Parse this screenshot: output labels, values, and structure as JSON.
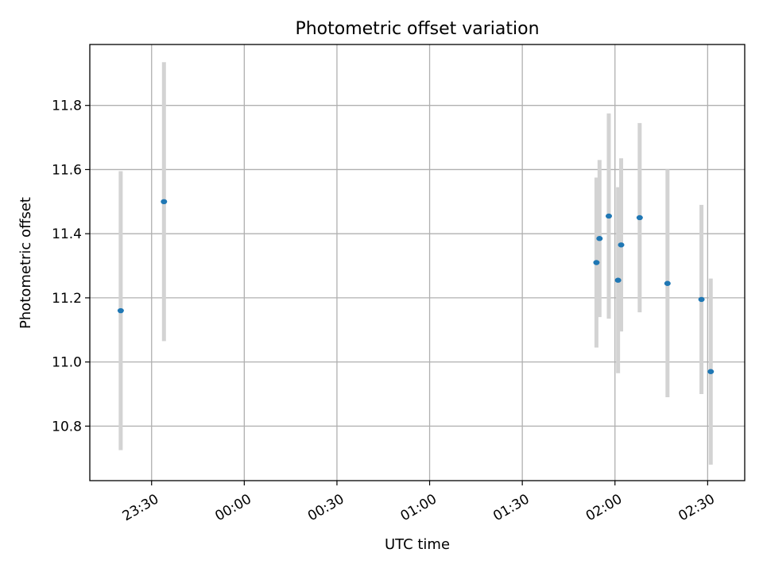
{
  "chart_data": {
    "type": "scatter",
    "title": "Photometric offset variation",
    "xlabel": "UTC time",
    "ylabel": "Photometric offset",
    "x_axis_kind": "time",
    "xlim": [
      "23:10",
      "02:42"
    ],
    "ylim": [
      10.63,
      11.99
    ],
    "x_ticks": [
      "23:30",
      "00:00",
      "00:30",
      "01:00",
      "01:30",
      "02:00",
      "02:30"
    ],
    "y_ticks": [
      "10.8",
      "11.0",
      "11.2",
      "11.4",
      "11.6",
      "11.8"
    ],
    "grid": true,
    "colors": {
      "marker": "#1f77b4",
      "error_bar": "#d3d3d3",
      "grid": "#b0b0b0"
    },
    "series": [
      {
        "points": [
          {
            "x": "23:20",
            "y": 11.16,
            "yerr": 0.435
          },
          {
            "x": "23:34",
            "y": 11.5,
            "yerr": 0.435
          },
          {
            "x": "01:54",
            "y": 11.31,
            "yerr": 0.265
          },
          {
            "x": "01:55",
            "y": 11.385,
            "yerr": 0.245
          },
          {
            "x": "01:58",
            "y": 11.455,
            "yerr": 0.32
          },
          {
            "x": "02:01",
            "y": 11.255,
            "yerr": 0.29
          },
          {
            "x": "02:02",
            "y": 11.365,
            "yerr": 0.27
          },
          {
            "x": "02:08",
            "y": 11.45,
            "yerr": 0.295
          },
          {
            "x": "02:17",
            "y": 11.245,
            "yerr": 0.355
          },
          {
            "x": "02:28",
            "y": 11.195,
            "yerr": 0.295
          },
          {
            "x": "02:31",
            "y": 10.97,
            "yerr": 0.29
          }
        ]
      }
    ]
  }
}
